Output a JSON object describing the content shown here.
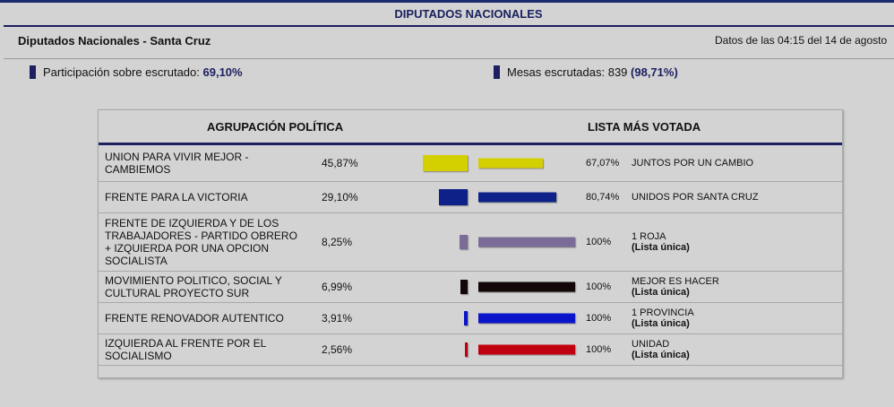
{
  "header": {
    "title": "DIPUTADOS NACIONALES",
    "subtitle": "Diputados Nacionales - Santa Cruz",
    "date": "Datos de las 04:15 del 14 de agosto"
  },
  "stats": {
    "participacion_label": "Participación sobre escrutado:",
    "participacion_value": "69,10%",
    "mesas_label": "Mesas escrutadas: 839",
    "mesas_value": "(98,71%)"
  },
  "table": {
    "col1": "AGRUPACIÓN POLÍTICA",
    "col2": "LISTA MÁS VOTADA",
    "rows": [
      {
        "name": "UNION PARA VIVIR MEJOR - CAMBIEMOS",
        "pct": "45,87%",
        "pct_value": 45.87,
        "list_pct": "67,07%",
        "list_pct_value": 67.07,
        "list_name": "JUNTOS POR UN CAMBIO",
        "list_note": "",
        "color": "#d4d000"
      },
      {
        "name": "FRENTE PARA LA VICTORIA",
        "pct": "29,10%",
        "pct_value": 29.1,
        "list_pct": "80,74%",
        "list_pct_value": 80.74,
        "list_name": "UNIDOS POR SANTA CRUZ",
        "list_note": "",
        "color": "#0d2189"
      },
      {
        "name": "FRENTE DE IZQUIERDA Y DE LOS TRABAJADORES - PARTIDO OBRERO + IZQUIERDA POR UNA OPCION SOCIALISTA",
        "pct": "8,25%",
        "pct_value": 8.25,
        "list_pct": "100%",
        "list_pct_value": 100,
        "list_name": "1 ROJA",
        "list_note": "(Lista única)",
        "color": "#7b6b97"
      },
      {
        "name": "MOVIMIENTO POLITICO, SOCIAL Y CULTURAL PROYECTO SUR",
        "pct": "6,99%",
        "pct_value": 6.99,
        "list_pct": "100%",
        "list_pct_value": 100,
        "list_name": "MEJOR ES HACER",
        "list_note": "(Lista única)",
        "color": "#120606"
      },
      {
        "name": "FRENTE RENOVADOR AUTENTICO",
        "pct": "3,91%",
        "pct_value": 3.91,
        "list_pct": "100%",
        "list_pct_value": 100,
        "list_name": "1 PROVINCIA",
        "list_note": "(Lista única)",
        "color": "#0a14c8"
      },
      {
        "name": "IZQUIERDA AL FRENTE POR EL SOCIALISMO",
        "pct": "2,56%",
        "pct_value": 2.56,
        "list_pct": "100%",
        "list_pct_value": 100,
        "list_name": "UNIDAD",
        "list_note": "(Lista única)",
        "color": "#c00010"
      }
    ]
  }
}
